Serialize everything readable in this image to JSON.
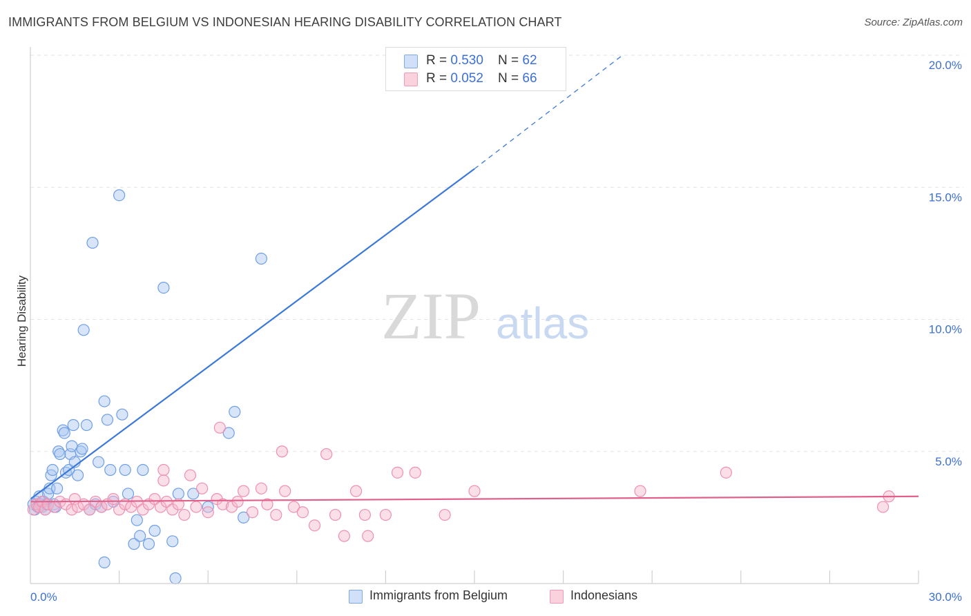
{
  "header": {
    "title": "IMMIGRANTS FROM BELGIUM VS INDONESIAN HEARING DISABILITY CORRELATION CHART",
    "source": "Source: ZipAtlas.com"
  },
  "watermark": {
    "zip": "ZIP",
    "atlas": "atlas"
  },
  "legend_top": {
    "rows": [
      {
        "r_label": "R = ",
        "r_value": "0.530",
        "n_label": "N = ",
        "n_value": "62",
        "color": "#a9c6f2"
      },
      {
        "r_label": "R = ",
        "r_value": "0.052",
        "n_label": "N = ",
        "n_value": "66",
        "color": "#f7b7cb"
      }
    ]
  },
  "legend_bottom": {
    "items": [
      {
        "label": "Immigrants from Belgium",
        "color": "#a9c6f2"
      },
      {
        "label": "Indonesians",
        "color": "#f7b7cb"
      }
    ]
  },
  "chart_data": {
    "type": "scatter",
    "title": "IMMIGRANTS FROM BELGIUM VS INDONESIAN HEARING DISABILITY CORRELATION CHART",
    "xlabel": "",
    "ylabel": "Hearing Disability",
    "xlim": [
      0,
      30
    ],
    "ylim": [
      0,
      20
    ],
    "x_tick_labels": {
      "min": "0.0%",
      "max": "30.0%"
    },
    "y_ticks": [
      {
        "value": 5,
        "label": "5.0%"
      },
      {
        "value": 10,
        "label": "10.0%"
      },
      {
        "value": 15,
        "label": "15.0%"
      },
      {
        "value": 20,
        "label": "20.0%"
      }
    ],
    "grid": true,
    "series": [
      {
        "name": "Immigrants from Belgium",
        "color": "#3b78d8",
        "fill": "#a9c6f2",
        "trend": {
          "x0": 0,
          "y0": 3.2,
          "x1": 15,
          "y1": 15.7,
          "dash_to_x": 20,
          "dash_to_y": 20
        },
        "points": [
          [
            0.1,
            3.0
          ],
          [
            0.15,
            2.8
          ],
          [
            0.2,
            3.1
          ],
          [
            0.25,
            2.9
          ],
          [
            0.3,
            3.3
          ],
          [
            0.35,
            3.0
          ],
          [
            0.4,
            2.9
          ],
          [
            0.45,
            3.1
          ],
          [
            0.5,
            2.8
          ],
          [
            0.55,
            3.0
          ],
          [
            0.6,
            3.4
          ],
          [
            0.65,
            3.6
          ],
          [
            0.7,
            4.1
          ],
          [
            0.75,
            4.3
          ],
          [
            0.8,
            3.0
          ],
          [
            0.85,
            2.9
          ],
          [
            0.9,
            3.6
          ],
          [
            0.95,
            5.0
          ],
          [
            1.0,
            4.9
          ],
          [
            1.1,
            5.8
          ],
          [
            1.15,
            5.7
          ],
          [
            1.2,
            4.2
          ],
          [
            1.3,
            4.3
          ],
          [
            1.35,
            4.9
          ],
          [
            1.4,
            5.2
          ],
          [
            1.45,
            6.0
          ],
          [
            1.5,
            4.6
          ],
          [
            1.6,
            4.1
          ],
          [
            1.7,
            5.0
          ],
          [
            1.75,
            5.1
          ],
          [
            1.8,
            9.6
          ],
          [
            1.9,
            6.0
          ],
          [
            2.0,
            2.8
          ],
          [
            2.1,
            12.9
          ],
          [
            2.2,
            3.0
          ],
          [
            2.3,
            4.6
          ],
          [
            2.4,
            2.9
          ],
          [
            2.5,
            6.9
          ],
          [
            2.6,
            6.2
          ],
          [
            2.7,
            4.3
          ],
          [
            2.8,
            3.1
          ],
          [
            3.0,
            14.7
          ],
          [
            3.1,
            6.4
          ],
          [
            3.2,
            4.3
          ],
          [
            3.3,
            3.4
          ],
          [
            3.5,
            1.5
          ],
          [
            3.6,
            2.4
          ],
          [
            3.7,
            1.8
          ],
          [
            4.0,
            1.5
          ],
          [
            4.2,
            2.0
          ],
          [
            4.5,
            11.2
          ],
          [
            4.8,
            1.6
          ],
          [
            3.8,
            4.3
          ],
          [
            5.0,
            3.4
          ],
          [
            5.5,
            3.4
          ],
          [
            6.0,
            2.9
          ],
          [
            6.7,
            5.7
          ],
          [
            6.9,
            6.5
          ],
          [
            7.2,
            2.5
          ],
          [
            7.8,
            12.3
          ],
          [
            2.5,
            0.8
          ],
          [
            4.9,
            0.2
          ]
        ]
      },
      {
        "name": "Indonesians",
        "color": "#e0608a",
        "fill": "#f7b7cb",
        "trend": {
          "x0": 0,
          "y0": 3.1,
          "x1": 30,
          "y1": 3.3
        },
        "points": [
          [
            0.1,
            2.8
          ],
          [
            0.2,
            3.0
          ],
          [
            0.3,
            2.9
          ],
          [
            0.4,
            3.1
          ],
          [
            0.5,
            2.8
          ],
          [
            0.6,
            3.0
          ],
          [
            0.8,
            2.9
          ],
          [
            1.0,
            3.1
          ],
          [
            1.2,
            3.0
          ],
          [
            1.4,
            2.8
          ],
          [
            1.5,
            3.2
          ],
          [
            1.6,
            2.9
          ],
          [
            1.8,
            3.0
          ],
          [
            2.0,
            2.8
          ],
          [
            2.2,
            3.1
          ],
          [
            2.4,
            2.9
          ],
          [
            2.6,
            3.0
          ],
          [
            2.8,
            3.2
          ],
          [
            3.0,
            2.8
          ],
          [
            3.2,
            3.0
          ],
          [
            3.4,
            2.9
          ],
          [
            3.6,
            3.1
          ],
          [
            3.8,
            2.8
          ],
          [
            4.0,
            3.0
          ],
          [
            4.2,
            3.2
          ],
          [
            4.4,
            2.9
          ],
          [
            4.6,
            3.1
          ],
          [
            4.8,
            2.8
          ],
          [
            5.0,
            3.0
          ],
          [
            5.2,
            2.6
          ],
          [
            5.4,
            4.1
          ],
          [
            5.6,
            2.9
          ],
          [
            5.8,
            3.6
          ],
          [
            6.0,
            2.7
          ],
          [
            6.3,
            3.2
          ],
          [
            6.5,
            3.0
          ],
          [
            6.8,
            2.9
          ],
          [
            7.0,
            3.1
          ],
          [
            7.2,
            3.5
          ],
          [
            7.5,
            2.7
          ],
          [
            7.8,
            3.6
          ],
          [
            8.0,
            3.0
          ],
          [
            8.3,
            2.6
          ],
          [
            8.6,
            3.5
          ],
          [
            8.9,
            2.9
          ],
          [
            9.2,
            2.7
          ],
          [
            9.6,
            2.2
          ],
          [
            10.0,
            4.9
          ],
          [
            10.3,
            2.6
          ],
          [
            10.6,
            1.8
          ],
          [
            11.0,
            3.5
          ],
          [
            11.4,
            1.8
          ],
          [
            12.0,
            2.6
          ],
          [
            12.4,
            4.2
          ],
          [
            13.0,
            4.2
          ],
          [
            4.5,
            4.3
          ],
          [
            4.5,
            3.9
          ],
          [
            6.4,
            5.9
          ],
          [
            8.5,
            5.0
          ],
          [
            11.3,
            2.6
          ],
          [
            14.0,
            2.6
          ],
          [
            15.0,
            3.5
          ],
          [
            20.6,
            3.5
          ],
          [
            23.5,
            4.2
          ],
          [
            28.8,
            2.9
          ],
          [
            29.0,
            3.3
          ]
        ]
      }
    ]
  }
}
